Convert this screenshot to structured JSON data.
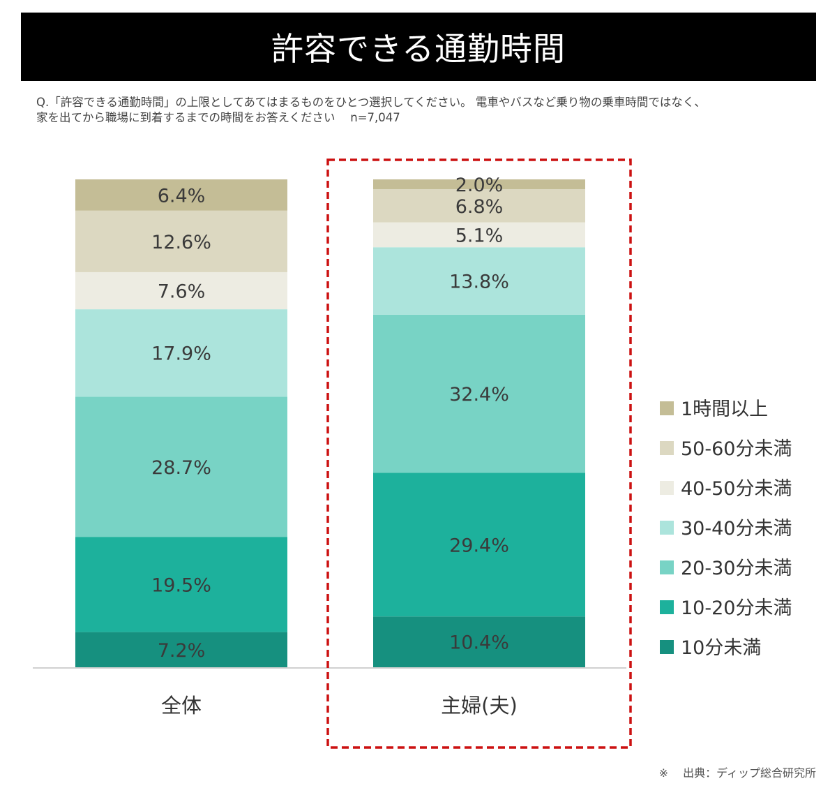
{
  "title": "許容できる通勤時間",
  "question_line1": "Q.「許容できる通勤時間」の上限としてあてはまるものをひとつ選択してください。 電車やバスなど乗り物の乗車時間ではなく、",
  "question_line2": "家を出てから職場に到着するまでの時間をお答えください　 n=7,047",
  "source": "※　 出典：ディップ総合研究所",
  "chart_data": {
    "type": "bar",
    "stacked": true,
    "percent": true,
    "categories": [
      "全体",
      "主婦(夫)"
    ],
    "highlighted_category": "主婦(夫)",
    "series": [
      {
        "name": "10分未満",
        "values": [
          7.2,
          10.4
        ],
        "color": "#16907f"
      },
      {
        "name": "10-20分未満",
        "values": [
          19.5,
          29.4
        ],
        "color": "#1db19c"
      },
      {
        "name": "20-30分未満",
        "values": [
          28.7,
          32.4
        ],
        "color": "#78d3c5"
      },
      {
        "name": "30-40分未満",
        "values": [
          17.9,
          13.8
        ],
        "color": "#ace4dc"
      },
      {
        "name": "40-50分未満",
        "values": [
          7.6,
          5.1
        ],
        "color": "#edece2"
      },
      {
        "name": "50-60分未満",
        "values": [
          12.6,
          6.8
        ],
        "color": "#dcd8c1"
      },
      {
        "name": "1時間以上",
        "values": [
          6.4,
          2.0
        ],
        "color": "#c4bd96"
      }
    ],
    "data_labels": [
      [
        "7.2%",
        "19.5%",
        "28.7%",
        "17.9%",
        "7.6%",
        "12.6%",
        "6.4%"
      ],
      [
        "10.4%",
        "29.4%",
        "32.4%",
        "13.8%",
        "5.1%",
        "6.8%",
        "2.0%"
      ]
    ],
    "legend": [
      "1時間以上",
      "50-60分未満",
      "40-50分未満",
      "30-40分未満",
      "20-30分未満",
      "10-20分未満",
      "10分未満"
    ],
    "legend_position": "right",
    "highlight_color": "#cc1111",
    "baseline_color": "#d0d0d0",
    "ylim": [
      0,
      100
    ],
    "grid": false
  }
}
